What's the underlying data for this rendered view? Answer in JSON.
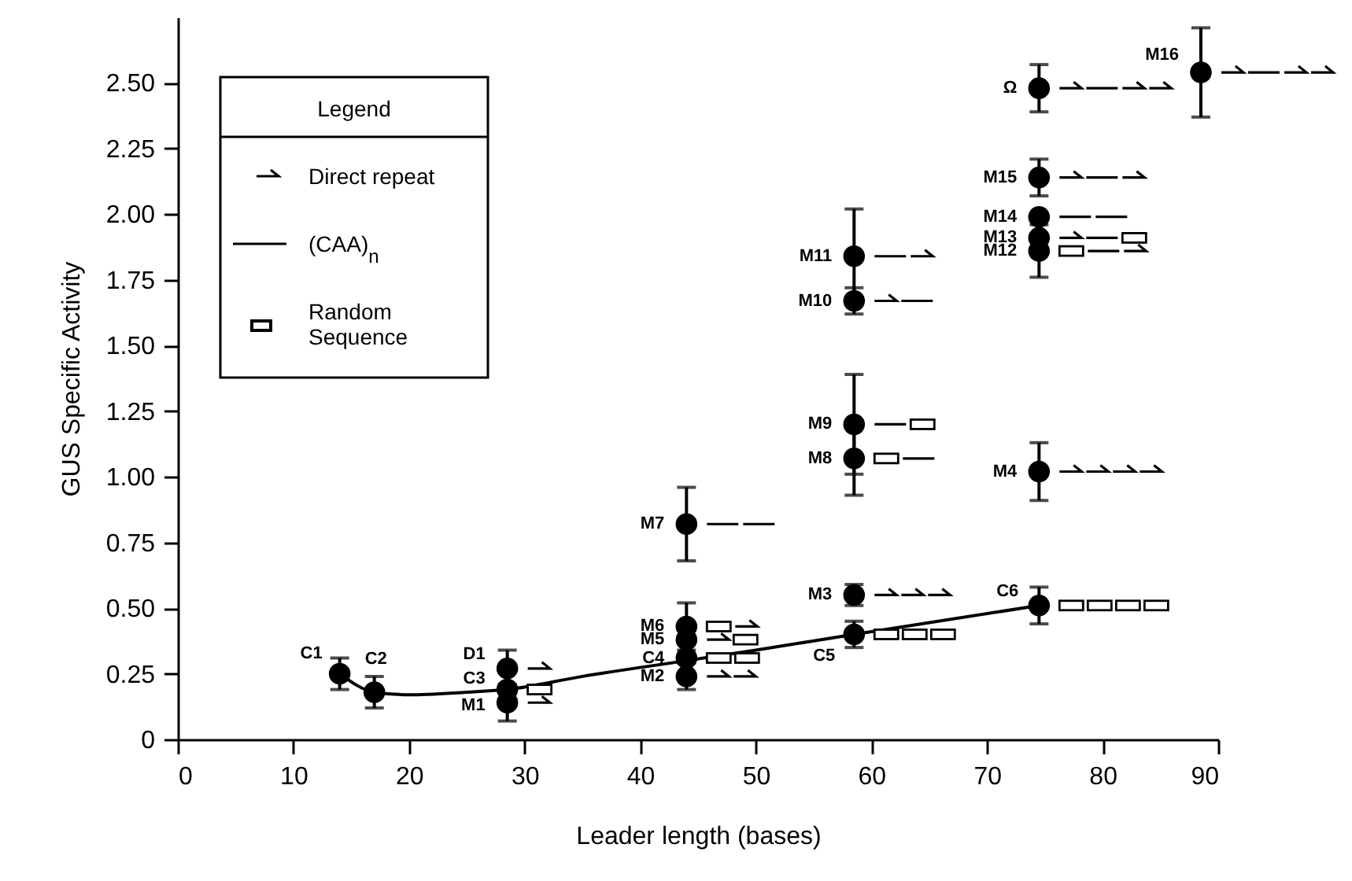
{
  "chart_data": {
    "type": "scatter",
    "xlabel": "Leader length (bases)",
    "ylabel": "GUS Specific Activity",
    "xlim": [
      0,
      90
    ],
    "xticks": [
      0,
      10,
      20,
      30,
      40,
      50,
      60,
      70,
      80,
      90
    ],
    "ylim": [
      0,
      2.75
    ],
    "yticks": [
      0,
      0.25,
      {
        "value": 0.5,
        "label": "0.50"
      },
      0.75,
      {
        "value": 1,
        "label": "1.00"
      },
      1.25,
      {
        "value": 1.5,
        "label": "1.50"
      },
      1.75,
      {
        "value": 2,
        "label": "2.00"
      },
      2.25,
      {
        "value": 2.5,
        "label": "2.50"
      }
    ],
    "series": [
      {
        "marker": "circle",
        "color": "#000000",
        "x": [
          14,
          17,
          28.5,
          28.5,
          28.5,
          44,
          44,
          44,
          44,
          44,
          58.5,
          58.5,
          58.5,
          58.5,
          58.5,
          58.5,
          74.5,
          74.5,
          74.5,
          74.5,
          74.5,
          74.5,
          74.5,
          88.5
        ],
        "values": [
          0.25,
          0.18,
          0.27,
          0.19,
          0.14,
          0.43,
          0.38,
          0.31,
          0.24,
          0.82,
          0.55,
          0.4,
          1.07,
          1.2,
          1.67,
          1.84,
          0.51,
          1.02,
          1.86,
          1.91,
          1.99,
          2.14,
          2.48,
          2.54
        ],
        "errors": [
          0.06,
          0.06,
          0.07,
          null,
          0.07,
          0.09,
          null,
          null,
          0.05,
          0.14,
          0.04,
          0.05,
          0.14,
          0.19,
          0.05,
          0.18,
          0.07,
          0.11,
          0.1,
          null,
          null,
          0.07,
          0.09,
          0.17
        ]
      },
      {
        "type": "line",
        "color": "#000000",
        "x": [
          14,
          17,
          20,
          25,
          28.5,
          35,
          44,
          50,
          58.5,
          74.5
        ],
        "values": [
          0.25,
          0.18,
          0.17,
          0.18,
          0.19,
          0.24,
          0.3,
          0.34,
          0.4,
          0.51
        ]
      }
    ],
    "annotations": [
      {
        "text": "C1",
        "x": 14,
        "y": 0.25
      },
      {
        "text": "C2",
        "x": 17,
        "y": 0.18
      },
      {
        "text": "D1",
        "x": 28.5,
        "y": 0.27
      },
      {
        "text": "C3",
        "x": 28.5,
        "y": 0.19
      },
      {
        "text": "M1",
        "x": 28.5,
        "y": 0.14
      },
      {
        "text": "M6",
        "x": 44,
        "y": 0.43
      },
      {
        "text": "M5",
        "x": 44,
        "y": 0.38
      },
      {
        "text": "C4",
        "x": 44,
        "y": 0.31
      },
      {
        "text": "M2",
        "x": 44,
        "y": 0.24
      },
      {
        "text": "M7",
        "x": 44,
        "y": 0.82
      },
      {
        "text": "M3",
        "x": 58.5,
        "y": 0.55
      },
      {
        "text": "C5",
        "x": 58.5,
        "y": 0.4
      },
      {
        "text": "M8",
        "x": 58.5,
        "y": 1.07
      },
      {
        "text": "M9",
        "x": 58.5,
        "y": 1.2
      },
      {
        "text": "M10",
        "x": 58.5,
        "y": 1.67
      },
      {
        "text": "M11",
        "x": 58.5,
        "y": 1.84
      },
      {
        "text": "C6",
        "x": 74.5,
        "y": 0.51
      },
      {
        "text": "M4",
        "x": 74.5,
        "y": 1.02
      },
      {
        "text": "M12",
        "x": 74.5,
        "y": 1.86
      },
      {
        "text": "M13",
        "x": 74.5,
        "y": 1.91
      },
      {
        "text": "M14",
        "x": 74.5,
        "y": 1.99
      },
      {
        "text": "M15",
        "x": 74.5,
        "y": 2.14
      },
      {
        "text": "Ω",
        "x": 74.5,
        "y": 2.48
      },
      {
        "text": "M16",
        "x": 88.5,
        "y": 2.54
      },
      "Legend",
      "Direct repeat",
      "(CAA)$_{n}$",
      "Random Sequence"
    ]
  }
}
